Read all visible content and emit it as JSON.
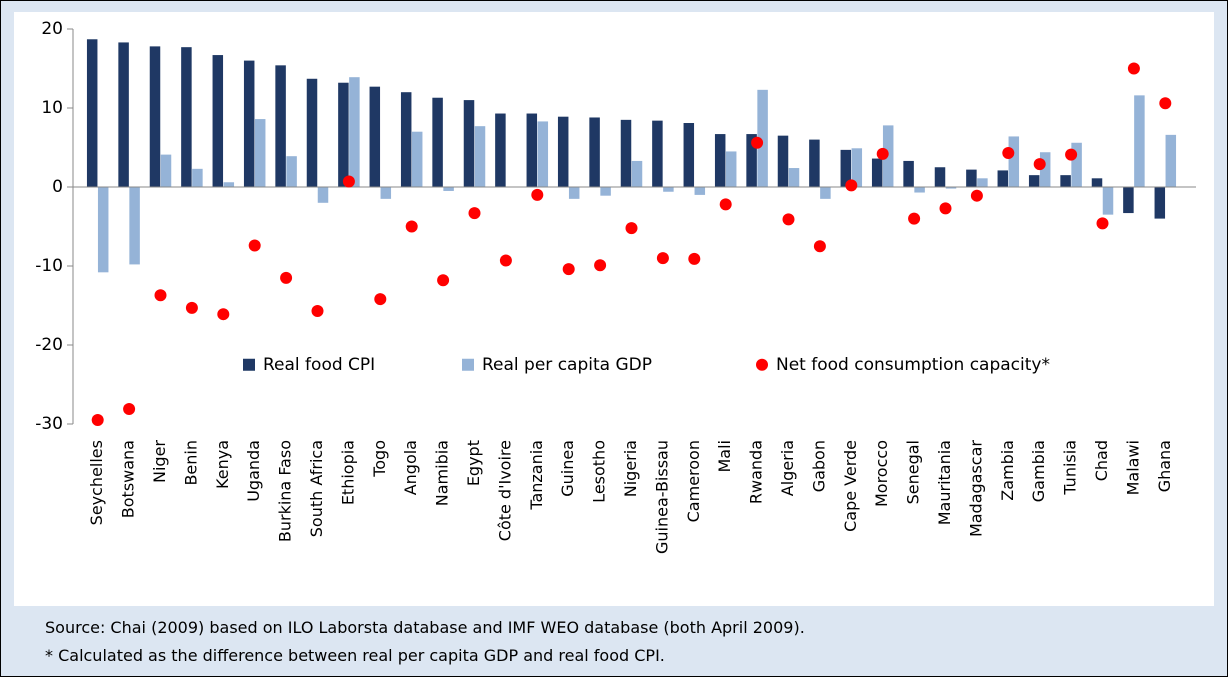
{
  "chart_data": {
    "type": "bar",
    "categories": [
      "Seychelles",
      "Botswana",
      "Niger",
      "Benin",
      "Kenya",
      "Uganda",
      "Burkina Faso",
      "South Africa",
      "Ethiopia",
      "Togo",
      "Angola",
      "Namibia",
      "Egypt",
      "Côte d'Ivoire",
      "Tanzania",
      "Guinea",
      "Lesotho",
      "Nigeria",
      "Guinea-Bissau",
      "Cameroon",
      "Mali",
      "Rwanda",
      "Algeria",
      "Gabon",
      "Cape Verde",
      "Morocco",
      "Senegal",
      "Mauritania",
      "Madagascar",
      "Zambia",
      "Gambia",
      "Tunisia",
      "Chad",
      "Malawi",
      "Ghana"
    ],
    "series": [
      {
        "name": "Real food CPI",
        "color": "#1f3864",
        "kind": "bar",
        "values": [
          18.7,
          18.3,
          17.8,
          17.7,
          16.7,
          16.0,
          15.4,
          13.7,
          13.2,
          12.7,
          12.0,
          11.3,
          11.0,
          9.3,
          9.3,
          8.9,
          8.8,
          8.5,
          8.4,
          8.1,
          6.7,
          6.7,
          6.5,
          6.0,
          4.7,
          3.6,
          3.3,
          2.5,
          2.2,
          2.1,
          1.5,
          1.5,
          1.1,
          -3.3,
          -4.0
        ]
      },
      {
        "name": "Real per capita GDP",
        "color": "#95b3d7",
        "kind": "bar",
        "values": [
          -10.8,
          -9.8,
          4.1,
          2.3,
          0.6,
          8.6,
          3.9,
          -2.0,
          13.9,
          -1.5,
          7.0,
          -0.5,
          7.7,
          0,
          8.3,
          -1.5,
          -1.1,
          3.3,
          -0.6,
          -1.0,
          4.5,
          12.3,
          2.4,
          -1.5,
          4.9,
          7.8,
          -0.7,
          -0.2,
          1.1,
          6.4,
          4.4,
          5.6,
          -3.5,
          11.6,
          6.6
        ]
      },
      {
        "name": "Net food consumption capacity*",
        "color": "#ff0000",
        "kind": "dot",
        "values": [
          -29.5,
          -28.1,
          -13.7,
          -15.3,
          -16.1,
          -7.4,
          -11.5,
          -15.7,
          0.7,
          -14.2,
          -5.0,
          -11.8,
          -3.3,
          -9.3,
          -1.0,
          -10.4,
          -9.9,
          -5.2,
          -9.0,
          -9.1,
          -2.2,
          5.6,
          -4.1,
          -7.5,
          0.2,
          4.2,
          -4.0,
          -2.7,
          -1.1,
          4.3,
          2.9,
          4.1,
          -4.6,
          15.0,
          10.6
        ]
      }
    ],
    "ylim": [
      -30,
      20
    ],
    "yticks": [
      -30,
      -20,
      -10,
      0,
      10,
      20
    ],
    "legend": "lower-center",
    "notes": [
      "Source: Chai (2009) based on ILO Laborsta database and IMF WEO database (both April 2009).",
      "* Calculated as the difference between real  per capita GDP and real food CPI."
    ]
  }
}
